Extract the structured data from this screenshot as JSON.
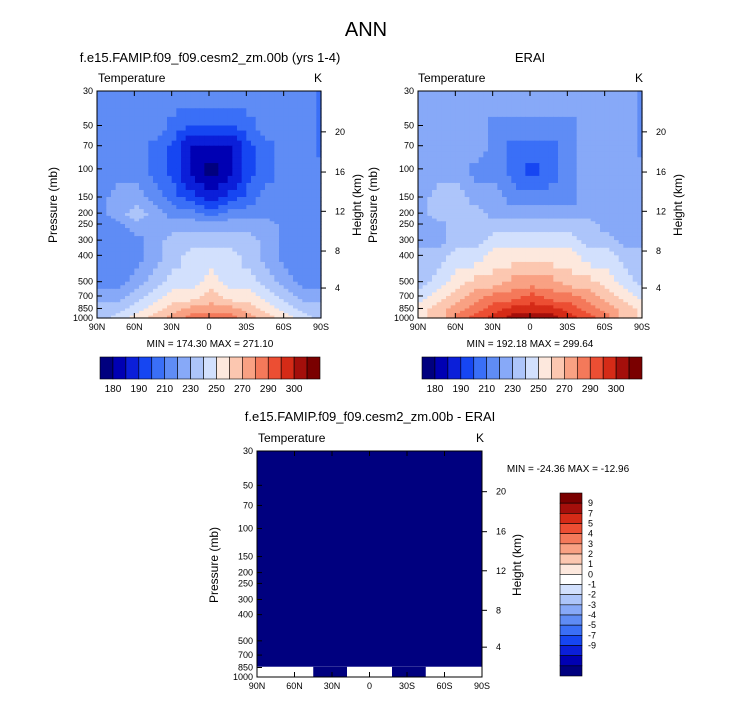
{
  "figure_title": "ANN",
  "colors": {
    "scale": [
      "#00007f",
      "#0000b3",
      "#0b1fd9",
      "#1646f2",
      "#3a6ff7",
      "#5f8cf5",
      "#87a9f8",
      "#adc5fa",
      "#d2e0fd",
      "#fde8dd",
      "#fcc7b0",
      "#f9a183",
      "#f4795a",
      "#ec4e33",
      "#d52b17",
      "#a40f0b",
      "#7a0000"
    ],
    "diff_scale": [
      "#00007f",
      "#0000b3",
      "#0b1fd9",
      "#1646f2",
      "#3a6ff7",
      "#5f8cf5",
      "#87a9f8",
      "#adc5fa",
      "#d2e0fd",
      "#ffffff",
      "#fde8dd",
      "#fcc7b0",
      "#f9a183",
      "#f4795a",
      "#ec4e33",
      "#d52b17",
      "#a40f0b",
      "#7a0000"
    ]
  },
  "chart_data": [
    {
      "type": "heatmap",
      "title": "f.e15.FAMIP.f09_f09.cesm2_zm.00b (yrs 1-4)",
      "left_label": "Temperature",
      "right_label": "K",
      "ylabel": "Pressure (mb)",
      "ylabel_right": "Height (km)",
      "x_ticks": [
        "90N",
        "60N",
        "30N",
        "0",
        "30S",
        "60S",
        "90S"
      ],
      "y_ticks": [
        "30",
        "50",
        "70",
        "100",
        "150",
        "200",
        "250",
        "300",
        "400",
        "500",
        "700",
        "850",
        "1000"
      ],
      "y_right_ticks": [
        "4",
        "8",
        "12",
        "16",
        "20"
      ],
      "stats": "MIN = 174.30  MAX = 271.10",
      "colorbar_labels": [
        "180",
        "190",
        "210",
        "230",
        "250",
        "270",
        "290",
        "300"
      ],
      "grid": {
        "x": [
          -90,
          -75,
          -60,
          -45,
          -30,
          -15,
          0,
          15,
          30,
          45,
          60,
          75,
          90
        ],
        "p": [
          30,
          50,
          70,
          100,
          150,
          200,
          250,
          300,
          400,
          500,
          700,
          850,
          1000
        ],
        "values": [
          [
            5,
            5,
            5,
            5,
            5,
            5,
            5,
            5,
            5,
            5,
            5,
            5,
            4
          ],
          [
            5,
            5,
            5,
            5,
            4,
            3,
            3,
            3,
            4,
            5,
            5,
            5,
            4
          ],
          [
            5,
            5,
            5,
            4,
            3,
            1,
            1,
            1,
            3,
            4,
            5,
            5,
            4
          ],
          [
            5,
            5,
            5,
            4,
            3,
            1,
            0,
            1,
            3,
            4,
            5,
            5,
            5
          ],
          [
            5,
            6,
            6,
            5,
            4,
            3,
            2,
            3,
            4,
            5,
            5,
            5,
            5
          ],
          [
            5,
            6,
            7,
            6,
            5,
            5,
            4,
            5,
            5,
            5,
            5,
            5,
            5
          ],
          [
            5,
            5,
            6,
            6,
            6,
            6,
            6,
            6,
            6,
            6,
            5,
            5,
            5
          ],
          [
            5,
            5,
            5,
            6,
            7,
            7,
            7,
            7,
            7,
            6,
            5,
            5,
            5
          ],
          [
            5,
            5,
            5,
            6,
            7,
            8,
            8,
            8,
            7,
            6,
            5,
            5,
            5
          ],
          [
            5,
            5,
            6,
            7,
            8,
            8,
            9,
            8,
            8,
            7,
            6,
            5,
            5
          ],
          [
            6,
            6,
            7,
            8,
            9,
            9,
            10,
            9,
            9,
            8,
            7,
            6,
            6
          ],
          [
            7,
            7,
            8,
            9,
            10,
            11,
            11,
            11,
            10,
            9,
            8,
            7,
            7
          ],
          [
            7,
            8,
            9,
            10,
            11,
            12,
            12,
            12,
            11,
            10,
            9,
            8,
            7
          ]
        ]
      }
    },
    {
      "type": "heatmap",
      "title": "ERAI",
      "left_label": "Temperature",
      "right_label": "K",
      "ylabel": "Pressure (mb)",
      "ylabel_right": "Height (km)",
      "x_ticks": [
        "90N",
        "60N",
        "30N",
        "0",
        "30S",
        "60S",
        "90S"
      ],
      "y_ticks": [
        "30",
        "50",
        "70",
        "100",
        "150",
        "200",
        "250",
        "300",
        "400",
        "500",
        "700",
        "850",
        "1000"
      ],
      "y_right_ticks": [
        "4",
        "8",
        "12",
        "16",
        "20"
      ],
      "stats": "MIN = 192.18  MAX = 299.64",
      "colorbar_labels": [
        "180",
        "190",
        "210",
        "230",
        "250",
        "270",
        "290",
        "300"
      ],
      "grid": {
        "x": [
          -90,
          -75,
          -60,
          -45,
          -30,
          -15,
          0,
          15,
          30,
          45,
          60,
          75,
          90
        ],
        "p": [
          30,
          50,
          70,
          100,
          150,
          200,
          250,
          300,
          400,
          500,
          700,
          850,
          1000
        ],
        "values": [
          [
            6,
            6,
            6,
            6,
            6,
            6,
            6,
            6,
            6,
            6,
            6,
            6,
            5
          ],
          [
            6,
            6,
            6,
            6,
            5,
            5,
            5,
            5,
            5,
            6,
            6,
            6,
            5
          ],
          [
            6,
            6,
            6,
            6,
            5,
            4,
            4,
            4,
            5,
            6,
            6,
            6,
            5
          ],
          [
            6,
            6,
            6,
            5,
            5,
            4,
            3,
            4,
            5,
            6,
            6,
            6,
            6
          ],
          [
            6,
            7,
            7,
            6,
            6,
            5,
            5,
            5,
            5,
            6,
            6,
            6,
            6
          ],
          [
            6,
            7,
            7,
            7,
            6,
            6,
            6,
            6,
            6,
            6,
            6,
            6,
            6
          ],
          [
            6,
            6,
            7,
            7,
            7,
            7,
            7,
            7,
            7,
            7,
            6,
            6,
            6
          ],
          [
            6,
            6,
            7,
            7,
            8,
            8,
            8,
            8,
            8,
            7,
            7,
            6,
            6
          ],
          [
            7,
            7,
            8,
            8,
            9,
            9,
            9,
            9,
            9,
            8,
            8,
            7,
            7
          ],
          [
            7,
            8,
            9,
            10,
            10,
            11,
            11,
            11,
            10,
            10,
            9,
            8,
            7
          ],
          [
            8,
            9,
            10,
            11,
            12,
            12,
            13,
            12,
            12,
            11,
            10,
            9,
            8
          ],
          [
            9,
            10,
            11,
            12,
            13,
            14,
            14,
            14,
            13,
            12,
            11,
            10,
            9
          ],
          [
            9,
            10,
            12,
            13,
            14,
            15,
            15,
            15,
            14,
            13,
            12,
            10,
            9
          ]
        ]
      }
    },
    {
      "type": "heatmap",
      "title": "f.e15.FAMIP.f09_f09.cesm2_zm.00b - ERAI",
      "left_label": "Temperature",
      "right_label": "K",
      "ylabel": "Pressure (mb)",
      "ylabel_right": "Height (km)",
      "x_ticks": [
        "90N",
        "60N",
        "30N",
        "0",
        "30S",
        "60S",
        "90S"
      ],
      "y_ticks": [
        "30",
        "50",
        "70",
        "100",
        "150",
        "200",
        "250",
        "300",
        "400",
        "500",
        "700",
        "850",
        "1000"
      ],
      "y_right_ticks": [
        "4",
        "8",
        "12",
        "16",
        "20"
      ],
      "stats": "MIN = -24.36  MAX = -12.96",
      "colorbar_labels": [
        "9",
        "7",
        "5",
        "4",
        "3",
        "2",
        "1",
        "0",
        "-1",
        "-2",
        "-3",
        "-4",
        "-5",
        "-7",
        "-9"
      ],
      "uniform_value": "below -9"
    }
  ]
}
